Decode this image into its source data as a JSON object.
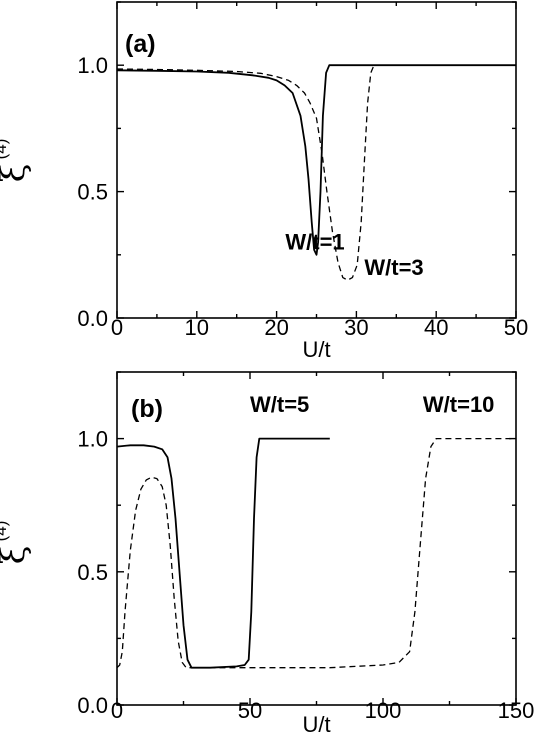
{
  "chart_data": [
    {
      "type": "line",
      "panel_label": "(a)",
      "xlabel": "U/t",
      "ylabel": "ξ",
      "ylabel_sup": "(4)",
      "xlim": [
        0,
        50
      ],
      "ylim": [
        0,
        1.25
      ],
      "xticks": [
        0,
        10,
        20,
        30,
        40,
        50
      ],
      "xtick_labels": [
        "0",
        "10",
        "20",
        "30",
        "40",
        "50"
      ],
      "yticks": [
        0,
        0.5,
        1.0
      ],
      "ytick_labels": [
        "0.0",
        "0.5",
        "1.0"
      ],
      "grid": false,
      "series": [
        {
          "style": "solid",
          "label": "W/t=1",
          "points": [
            [
              0,
              0.98
            ],
            [
              5,
              0.978
            ],
            [
              10,
              0.975
            ],
            [
              14,
              0.97
            ],
            [
              17,
              0.96
            ],
            [
              19,
              0.95
            ],
            [
              20,
              0.94
            ],
            [
              21,
              0.92
            ],
            [
              22,
              0.89
            ],
            [
              23,
              0.8
            ],
            [
              23.6,
              0.68
            ],
            [
              24,
              0.55
            ],
            [
              24.4,
              0.38
            ],
            [
              24.7,
              0.27
            ],
            [
              25,
              0.25
            ],
            [
              25.2,
              0.3
            ],
            [
              25.5,
              0.5
            ],
            [
              25.8,
              0.8
            ],
            [
              26.2,
              0.97
            ],
            [
              26.6,
              1.0
            ],
            [
              30,
              1.0
            ],
            [
              40,
              1.0
            ],
            [
              50,
              1.0
            ]
          ]
        },
        {
          "style": "dashed",
          "label": "W/t=3",
          "points": [
            [
              0,
              0.985
            ],
            [
              5,
              0.983
            ],
            [
              10,
              0.98
            ],
            [
              15,
              0.975
            ],
            [
              18,
              0.968
            ],
            [
              20,
              0.955
            ],
            [
              21.5,
              0.94
            ],
            [
              22.5,
              0.92
            ],
            [
              23.5,
              0.89
            ],
            [
              24.2,
              0.85
            ],
            [
              25,
              0.79
            ],
            [
              25.7,
              0.65
            ],
            [
              26.3,
              0.5
            ],
            [
              27,
              0.34
            ],
            [
              27.7,
              0.22
            ],
            [
              28.3,
              0.16
            ],
            [
              28.9,
              0.15
            ],
            [
              29.5,
              0.16
            ],
            [
              30.1,
              0.21
            ],
            [
              30.6,
              0.38
            ],
            [
              31,
              0.62
            ],
            [
              31.4,
              0.85
            ],
            [
              31.8,
              0.97
            ],
            [
              32.2,
              1.0
            ],
            [
              35,
              1.0
            ],
            [
              50,
              1.0
            ]
          ]
        }
      ],
      "annotations": [
        {
          "text": "W/t=1",
          "x": 21.1,
          "y": 0.27
        },
        {
          "text": "W/t=3",
          "x": 31,
          "y": 0.17
        }
      ]
    },
    {
      "type": "line",
      "panel_label": "(b)",
      "xlabel": "U/t",
      "ylabel": "ξ",
      "ylabel_sup": "(4)",
      "xlim": [
        0,
        150
      ],
      "ylim": [
        0,
        1.25
      ],
      "xticks": [
        0,
        50,
        100,
        150
      ],
      "xtick_labels": [
        "0",
        "50",
        "100",
        "150"
      ],
      "yticks": [
        0,
        0.5,
        1.0
      ],
      "ytick_labels": [
        "0.0",
        "0.5",
        "1.0"
      ],
      "grid": false,
      "series": [
        {
          "style": "solid",
          "label": "W/t=5",
          "points": [
            [
              0,
              0.97
            ],
            [
              5,
              0.975
            ],
            [
              10,
              0.975
            ],
            [
              14,
              0.97
            ],
            [
              17,
              0.96
            ],
            [
              19,
              0.93
            ],
            [
              20.5,
              0.85
            ],
            [
              22,
              0.7
            ],
            [
              23.5,
              0.5
            ],
            [
              25,
              0.3
            ],
            [
              26.5,
              0.17
            ],
            [
              28,
              0.14
            ],
            [
              35,
              0.14
            ],
            [
              45,
              0.145
            ],
            [
              48,
              0.15
            ],
            [
              49.5,
              0.17
            ],
            [
              50.5,
              0.35
            ],
            [
              51.5,
              0.7
            ],
            [
              52.5,
              0.93
            ],
            [
              53.5,
              1.0
            ],
            [
              60,
              1.0
            ],
            [
              70,
              1.0
            ],
            [
              80,
              1.0
            ]
          ]
        },
        {
          "style": "dashed",
          "label": "W/t=10",
          "points": [
            [
              0,
              0.14
            ],
            [
              1,
              0.15
            ],
            [
              2,
              0.2
            ],
            [
              3,
              0.35
            ],
            [
              5,
              0.58
            ],
            [
              7,
              0.73
            ],
            [
              9,
              0.81
            ],
            [
              11,
              0.845
            ],
            [
              13,
              0.855
            ],
            [
              15,
              0.85
            ],
            [
              17,
              0.82
            ],
            [
              18.5,
              0.75
            ],
            [
              20,
              0.6
            ],
            [
              21.5,
              0.4
            ],
            [
              23,
              0.24
            ],
            [
              24.5,
              0.16
            ],
            [
              26,
              0.14
            ],
            [
              40,
              0.14
            ],
            [
              60,
              0.14
            ],
            [
              80,
              0.14
            ],
            [
              100,
              0.15
            ],
            [
              106,
              0.16
            ],
            [
              110,
              0.2
            ],
            [
              112,
              0.35
            ],
            [
              114,
              0.6
            ],
            [
              116,
              0.85
            ],
            [
              118,
              0.97
            ],
            [
              120,
              1.0
            ],
            [
              130,
              1.0
            ],
            [
              150,
              1.0
            ]
          ]
        }
      ],
      "annotations": [
        {
          "text": "W/t=5",
          "x": 50,
          "y": 1.1
        },
        {
          "text": "W/t=10",
          "x": 115,
          "y": 1.1
        }
      ]
    }
  ]
}
